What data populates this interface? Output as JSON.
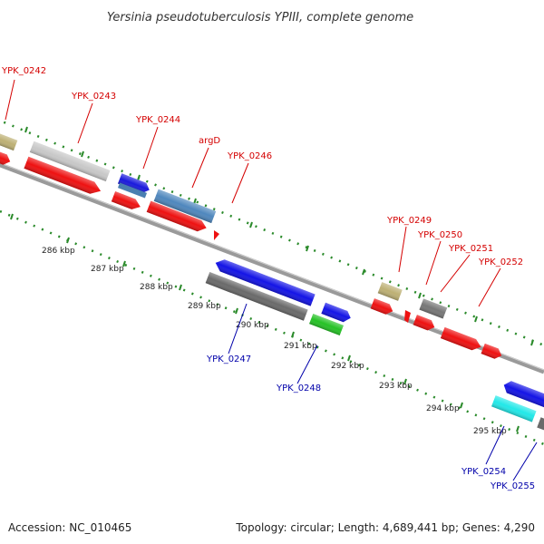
{
  "title": "Yersinia pseudotuberculosis YPIII, complete genome",
  "footer": {
    "accession": "Accession: NC_010465",
    "topology": "Topology: circular; Length: 4,689,441 bp; Genes: 4,290"
  },
  "colors": {
    "forward_label": "#d40000",
    "reverse_label": "#0000aa",
    "leader": "#d40000",
    "leader_reverse": "#0000aa",
    "backbone": "#999999",
    "tick": "#2a8a2a"
  },
  "kbp_labels": [
    "286 kbp",
    "287 kbp",
    "288 kbp",
    "289 kbp",
    "290 kbp",
    "291 kbp",
    "292 kbp",
    "293 kbp",
    "294 kbp",
    "295 kbp"
  ],
  "genes_forward": [
    "YPK_0242",
    "YPK_0243",
    "YPK_0244",
    "argD",
    "YPK_0246",
    "YPK_0249",
    "YPK_0250",
    "YPK_0251",
    "YPK_0252"
  ],
  "genes_reverse": [
    "YPK_0247",
    "YPK_0248",
    "YPK_0254",
    "YPK_0255"
  ]
}
